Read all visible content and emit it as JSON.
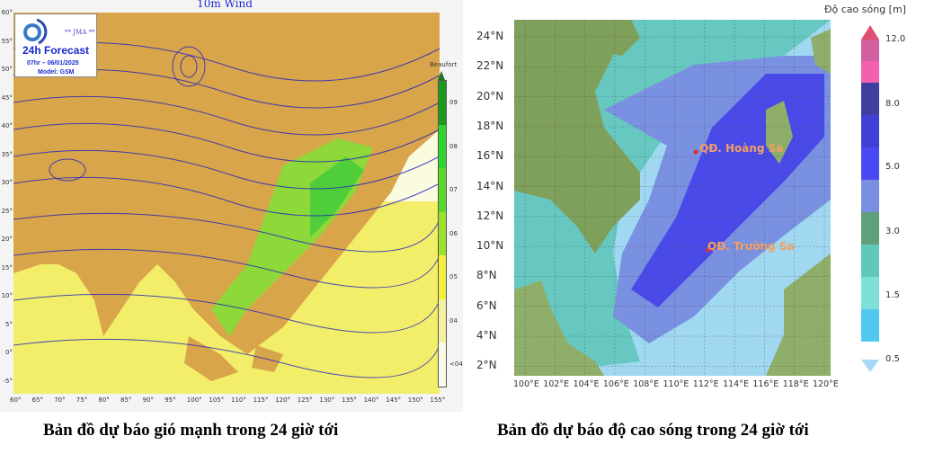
{
  "wind_map": {
    "title": "10m Wind",
    "agency": "** JMA **",
    "forecast": "24h Forecast",
    "valid_time": "07hr – 06/01/2025",
    "model": "Model: GSM",
    "lat_ticks": [
      "60°",
      "55°",
      "50°",
      "45°",
      "40°",
      "35°",
      "30°",
      "25°",
      "20°",
      "15°",
      "10°",
      "5°",
      "0°",
      "-5°"
    ],
    "lon_ticks": [
      "60°",
      "65°",
      "70°",
      "75°",
      "80°",
      "85°",
      "90°",
      "95°",
      "100°",
      "105°",
      "110°",
      "115°",
      "120°",
      "125°",
      "130°",
      "135°",
      "140°",
      "145°",
      "150°",
      "155°"
    ],
    "colorbar": {
      "title": "Beaufort",
      "labels": [
        "09",
        "08",
        "07",
        "06",
        "05",
        "04",
        "<04"
      ],
      "colors": [
        "#1c9a1c",
        "#2fd42f",
        "#5ad82a",
        "#9ee02a",
        "#f2ef3c",
        "#f5f0a0",
        "#fbfbe8"
      ]
    },
    "caption": "Bản đồ dự báo gió mạnh trong 24 giờ tới"
  },
  "wave_map": {
    "lat_ticks": [
      "24°N",
      "22°N",
      "20°N",
      "18°N",
      "16°N",
      "14°N",
      "12°N",
      "10°N",
      "8°N",
      "6°N",
      "4°N",
      "2°N"
    ],
    "lon_ticks": [
      "100°E",
      "102°E",
      "104°E",
      "106°E",
      "108°E",
      "110°E",
      "112°E",
      "114°E",
      "116°E",
      "118°E",
      "120°E"
    ],
    "labels": [
      "QĐ. Hoàng Sa",
      "QĐ. Trường Sa"
    ],
    "colorbar": {
      "title": "Độ cao sóng [m]",
      "labels": [
        "12.0",
        "8.0",
        "5.0",
        "3.0",
        "1.5",
        "0.5"
      ],
      "colors": [
        "#d25fa0",
        "#f55fb0",
        "#3f3fa0",
        "#4040d8",
        "#4a4af5",
        "#7a8fe0",
        "#5f9f7a",
        "#5fc8b8",
        "#7fe0d8",
        "#50c8f0"
      ]
    },
    "caption": "Bản đồ dự báo độ cao sóng trong 24 giờ tới"
  }
}
